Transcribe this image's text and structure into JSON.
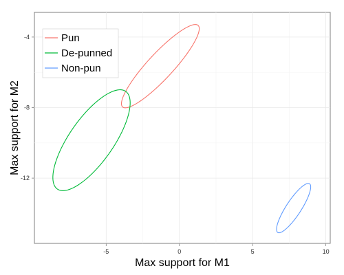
{
  "chart_data": {
    "type": "ellipse",
    "xlabel": "Max support for M1",
    "ylabel": "Max support for M2",
    "xlim": [
      -9.9,
      10.3
    ],
    "ylim": [
      -15.7,
      -2.6
    ],
    "x_ticks": [
      -5,
      0,
      5,
      10
    ],
    "y_ticks": [
      -12,
      -8,
      -4
    ],
    "x_tick_labels": [
      "-5",
      "0",
      "5",
      "10"
    ],
    "y_tick_labels": [
      "-12",
      "-8",
      "-4"
    ],
    "grid": true,
    "legend_position": "top-left",
    "series": [
      {
        "name": "Pun",
        "color": "#F8766D",
        "points": [
          [
            1.2,
            -3.3
          ],
          [
            -2.2,
            -5.4
          ],
          [
            -3.8,
            -8.0
          ],
          [
            -0.4,
            -5.8
          ]
        ]
      },
      {
        "name": "De-punned",
        "color": "#00BA38",
        "points": [
          [
            -3.9,
            -7.0
          ],
          [
            -7.6,
            -9.6
          ],
          [
            -8.1,
            -12.7
          ],
          [
            -4.2,
            -10.1
          ]
        ]
      },
      {
        "name": "Non-pun",
        "color": "#619CFF",
        "points": [
          [
            8.8,
            -12.3
          ],
          [
            7.2,
            -13.7
          ],
          [
            6.8,
            -15.1
          ],
          [
            8.5,
            -13.6
          ]
        ]
      }
    ]
  }
}
